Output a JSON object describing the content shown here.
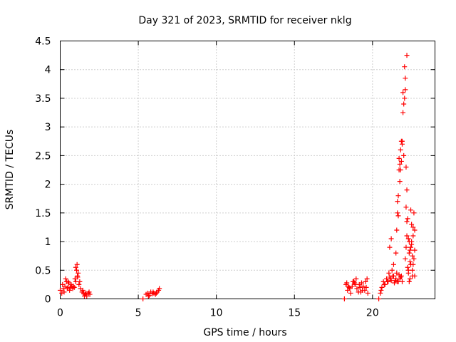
{
  "chart_data": {
    "type": "scatter",
    "title": "Day 321 of 2023, SRMTID for receiver nklg",
    "xlabel": "GPS time / hours",
    "ylabel": "SRMTID / TECUs",
    "xlim": [
      0,
      24
    ],
    "ylim": [
      0,
      4.5
    ],
    "xticks": [
      0,
      5,
      10,
      15,
      20
    ],
    "xtick_labels": [
      "0",
      "5",
      "10",
      "15",
      "20"
    ],
    "yticks": [
      0,
      0.5,
      1,
      1.5,
      2,
      2.5,
      3,
      3.5,
      4,
      4.5
    ],
    "ytick_labels": [
      "0",
      "0.5",
      "1",
      "1.5",
      "2",
      "2.5",
      "3",
      "3.5",
      "4",
      "4.5"
    ],
    "grid": true,
    "marker": "+",
    "series": [
      {
        "name": "nklg",
        "color": "#ff0000",
        "x": [
          0.0,
          0.1,
          0.2,
          0.3,
          0.4,
          0.5,
          0.6,
          0.7,
          0.8,
          0.9,
          1.0,
          1.1,
          1.2,
          1.3,
          1.4,
          1.5,
          1.6,
          1.7,
          1.8,
          1.9,
          0.15,
          0.35,
          0.55,
          0.75,
          0.95,
          1.05,
          1.15,
          1.25,
          1.45,
          1.65,
          0.45,
          0.65,
          0.85,
          1.08,
          1.12,
          0.25,
          0.5,
          1.0,
          1.55,
          1.85,
          5.3,
          5.5,
          5.6,
          5.7,
          5.8,
          5.9,
          6.0,
          6.1,
          6.2,
          6.3,
          6.35,
          5.65,
          5.95,
          6.15,
          18.2,
          18.3,
          18.4,
          18.5,
          18.6,
          18.7,
          18.8,
          18.9,
          19.0,
          19.1,
          19.2,
          19.3,
          19.4,
          19.5,
          19.6,
          19.7,
          18.35,
          18.55,
          18.75,
          18.95,
          19.15,
          19.35,
          19.55,
          18.45,
          18.85,
          19.25,
          19.65,
          20.4,
          20.5,
          20.6,
          20.7,
          20.8,
          20.9,
          21.0,
          21.1,
          21.2,
          21.3,
          21.4,
          21.5,
          21.6,
          21.7,
          21.8,
          21.9,
          20.55,
          20.75,
          20.95,
          21.15,
          21.35,
          21.55,
          21.75,
          21.05,
          21.25,
          21.45,
          21.65,
          21.85,
          21.1,
          21.2,
          21.35,
          21.5,
          21.55,
          21.6,
          21.65,
          21.7,
          21.75,
          21.8,
          21.85,
          21.9,
          21.95,
          22.0,
          22.05,
          22.1,
          22.15,
          22.2,
          21.6,
          21.7,
          21.8,
          21.9,
          22.0,
          22.1,
          22.2,
          21.65,
          21.75,
          21.85,
          21.95,
          22.05,
          22.15,
          22.1,
          22.15,
          22.2,
          22.25,
          22.3,
          22.35,
          22.4,
          22.45,
          22.5,
          22.55,
          22.6,
          22.65,
          22.7,
          22.2,
          22.3,
          22.4,
          22.5,
          22.6,
          22.7,
          22.25,
          22.35,
          22.45,
          22.55,
          22.65,
          22.3,
          22.4,
          22.5,
          22.6,
          22.7,
          22.35,
          22.45,
          22.55
        ],
        "y": [
          0.15,
          0.1,
          0.18,
          0.22,
          0.3,
          0.2,
          0.15,
          0.25,
          0.18,
          0.2,
          0.3,
          0.4,
          0.25,
          0.18,
          0.12,
          0.1,
          0.08,
          0.05,
          0.1,
          0.08,
          0.25,
          0.35,
          0.28,
          0.22,
          0.35,
          0.5,
          0.45,
          0.3,
          0.15,
          0.1,
          0.18,
          0.2,
          0.22,
          0.6,
          0.38,
          0.12,
          0.3,
          0.55,
          0.05,
          0.12,
          0.0,
          0.08,
          0.1,
          0.06,
          0.12,
          0.09,
          0.1,
          0.08,
          0.12,
          0.15,
          0.18,
          0.05,
          0.12,
          0.1,
          0.0,
          0.25,
          0.15,
          0.2,
          0.1,
          0.22,
          0.3,
          0.25,
          0.18,
          0.12,
          0.2,
          0.28,
          0.22,
          0.15,
          0.2,
          0.1,
          0.28,
          0.18,
          0.3,
          0.35,
          0.25,
          0.15,
          0.3,
          0.22,
          0.28,
          0.12,
          0.35,
          0.0,
          0.1,
          0.2,
          0.3,
          0.25,
          0.35,
          0.3,
          0.38,
          0.32,
          0.4,
          0.28,
          0.35,
          0.3,
          0.42,
          0.38,
          0.3,
          0.15,
          0.25,
          0.3,
          0.35,
          0.4,
          0.45,
          0.35,
          0.45,
          0.5,
          0.32,
          0.3,
          0.4,
          0.9,
          1.05,
          0.6,
          0.8,
          1.2,
          1.5,
          1.8,
          2.25,
          2.05,
          2.6,
          2.4,
          2.75,
          3.25,
          2.5,
          3.5,
          3.65,
          2.3,
          1.9,
          1.7,
          2.45,
          2.25,
          2.7,
          3.4,
          3.85,
          4.25,
          1.45,
          2.35,
          2.75,
          3.6,
          4.05,
          1.6,
          0.7,
          0.9,
          1.1,
          0.55,
          0.45,
          0.8,
          0.35,
          0.6,
          1.0,
          0.75,
          1.25,
          1.5,
          1.2,
          1.35,
          0.5,
          0.65,
          0.95,
          1.1,
          0.85,
          1.4,
          0.3,
          1.55,
          0.4,
          0.7,
          1.05,
          0.85,
          1.3,
          0.6,
          0.4,
          1.0,
          0.9,
          0.5
        ]
      }
    ]
  }
}
